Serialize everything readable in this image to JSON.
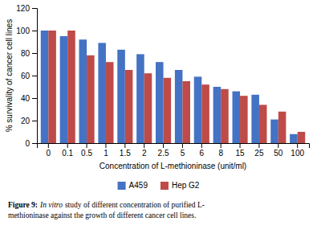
{
  "chart_data": {
    "type": "bar",
    "categories": [
      "0",
      "0.1",
      "0.5",
      "1",
      "1.5",
      "2",
      "2.5",
      "5",
      "6",
      "8",
      "15",
      "25",
      "50",
      "100"
    ],
    "series": [
      {
        "name": "A459",
        "color": "#4472C4",
        "values": [
          100,
          95,
          92,
          89,
          83,
          79,
          72,
          65,
          59,
          50,
          46,
          43,
          21,
          8
        ]
      },
      {
        "name": "Hep G2",
        "color": "#BE4B48",
        "values": [
          100,
          100,
          78,
          72,
          65,
          62,
          58,
          55,
          52,
          48,
          42,
          34,
          28,
          10
        ]
      }
    ],
    "x_label": "Concentration of L-methioninase (unit/ml)",
    "y_label": "% survivality of cancer cell lines",
    "ylim": [
      0,
      120
    ],
    "yticks": [
      0,
      20,
      40,
      60,
      80,
      100,
      120
    ],
    "grid": false,
    "legend": "bottom",
    "annotations": [
      "Figure 9:",
      "In vitro",
      "study of different concentration of purified L-",
      "methioninase against the growth of different cancer cell lines."
    ]
  }
}
